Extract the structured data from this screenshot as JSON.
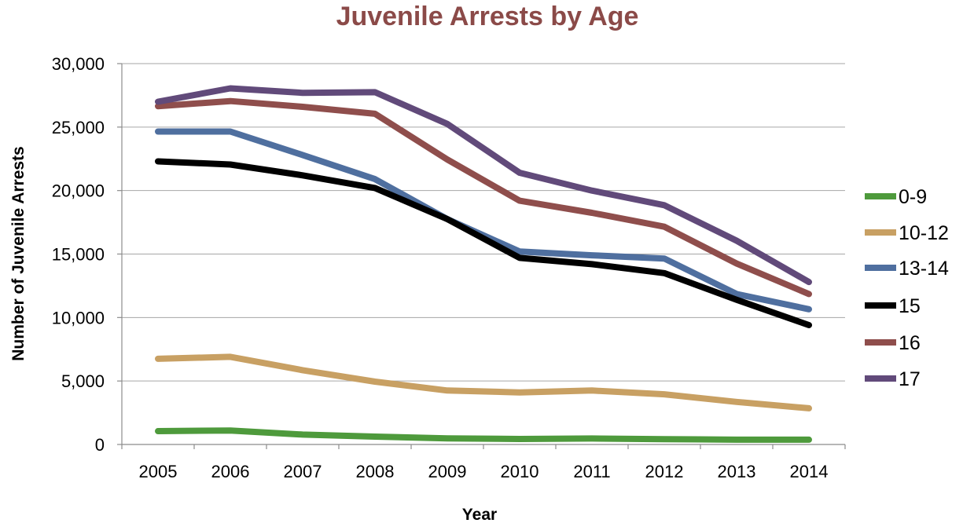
{
  "chart_data": {
    "type": "line",
    "title": "Juvenile Arrests by Age",
    "xlabel": "Year",
    "ylabel": "Number of Juvenile Arrests",
    "categories": [
      "2005",
      "2006",
      "2007",
      "2008",
      "2009",
      "2010",
      "2011",
      "2012",
      "2013",
      "2014"
    ],
    "ylim": [
      0,
      30000
    ],
    "yticks": [
      0,
      5000,
      10000,
      15000,
      20000,
      25000,
      30000
    ],
    "ytick_labels": [
      "0",
      "5,000",
      "10,000",
      "15,000",
      "20,000",
      "25,000",
      "30,000"
    ],
    "grid": true,
    "legend_position": "right",
    "series": [
      {
        "name": "0-9",
        "color": "#4e9a3c",
        "values": [
          1050,
          1100,
          780,
          620,
          480,
          430,
          470,
          420,
          380,
          380
        ]
      },
      {
        "name": " 10-12",
        "color": "#c8a063",
        "values": [
          6750,
          6900,
          5850,
          4950,
          4250,
          4100,
          4250,
          3950,
          3350,
          2850
        ]
      },
      {
        "name": "13-14",
        "color": "#4f6f9f",
        "values": [
          24650,
          24650,
          22800,
          20900,
          17750,
          15200,
          14900,
          14650,
          11850,
          10650
        ]
      },
      {
        "name": "15",
        "color": "#000000",
        "values": [
          22300,
          22050,
          21200,
          20200,
          17750,
          14700,
          14200,
          13500,
          11400,
          9400
        ]
      },
      {
        "name": "16",
        "color": "#8f4e4c",
        "values": [
          26650,
          27050,
          26600,
          26050,
          22450,
          19200,
          18250,
          17150,
          14250,
          11850
        ]
      },
      {
        "name": "17",
        "color": "#614a7a",
        "values": [
          27000,
          28050,
          27700,
          27750,
          25250,
          21400,
          20000,
          18850,
          16050,
          12800
        ]
      }
    ]
  }
}
